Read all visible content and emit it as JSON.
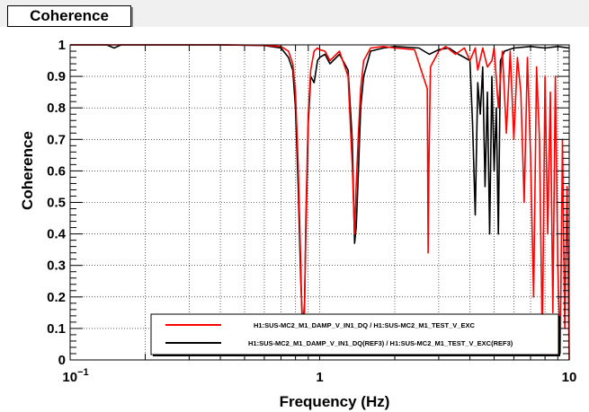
{
  "window": {
    "title": "Coherence"
  },
  "chart_data": {
    "type": "line",
    "title": "Coherence",
    "xlabel": "Frequency (Hz)",
    "ylabel": "Coherence",
    "xscale": "log",
    "xlim": [
      0.1,
      10
    ],
    "ylim": [
      0,
      1
    ],
    "grid": true,
    "legend_position": "bottom-right",
    "x_ticks": [
      {
        "value": 0.1,
        "base": "10",
        "exp": "−1"
      },
      {
        "value": 1,
        "base": "1",
        "exp": ""
      },
      {
        "value": 10,
        "base": "10",
        "exp": ""
      }
    ],
    "y_ticks": [
      "0",
      "0.1",
      "0.2",
      "0.3",
      "0.4",
      "0.5",
      "0.6",
      "0.7",
      "0.8",
      "0.9",
      "1"
    ],
    "series": [
      {
        "name": "H1:SUS-MC2_M1_DAMP_V_IN1_DQ / H1:SUS-MC2_M1_TEST_V_EXC",
        "color": "#ff0000",
        "x": [
          0.1,
          0.2,
          0.4,
          0.6,
          0.7,
          0.75,
          0.78,
          0.8,
          0.82,
          0.84,
          0.85,
          0.86,
          0.87,
          0.88,
          0.9,
          0.92,
          0.95,
          0.98,
          1.0,
          1.05,
          1.1,
          1.2,
          1.3,
          1.35,
          1.38,
          1.4,
          1.43,
          1.46,
          1.5,
          1.6,
          1.8,
          2.0,
          2.4,
          2.7,
          2.72,
          2.74,
          2.78,
          3.0,
          3.2,
          3.5,
          3.8,
          4.0,
          4.2,
          4.3,
          4.5,
          4.7,
          4.9,
          5.0,
          5.2,
          5.4,
          5.6,
          5.8,
          6.0,
          6.2,
          6.4,
          6.6,
          6.8,
          7.0,
          7.2,
          7.4,
          7.6,
          7.8,
          8.0,
          8.2,
          8.4,
          8.6,
          8.8,
          9.0,
          9.2,
          9.4,
          9.6,
          9.8,
          10.0
        ],
        "y": [
          1.0,
          1.0,
          1.0,
          0.999,
          0.995,
          0.98,
          0.94,
          0.85,
          0.62,
          0.3,
          0.12,
          0.05,
          0.16,
          0.45,
          0.78,
          0.92,
          0.98,
          0.99,
          0.985,
          0.98,
          0.95,
          0.98,
          0.9,
          0.62,
          0.4,
          0.55,
          0.72,
          0.86,
          0.95,
          0.99,
          0.995,
          0.99,
          0.985,
          0.86,
          0.34,
          0.62,
          0.93,
          0.98,
          0.995,
          0.97,
          0.99,
          0.95,
          0.99,
          0.92,
          0.99,
          0.93,
          0.95,
          0.99,
          0.8,
          0.98,
          0.72,
          0.98,
          0.7,
          0.96,
          0.85,
          0.5,
          0.96,
          0.65,
          0.2,
          0.93,
          0.7,
          0.05,
          0.9,
          0.4,
          0.85,
          0.15,
          0.9,
          0.3,
          0.02,
          0.7,
          0.1,
          0.55,
          0.0
        ]
      },
      {
        "name": "H1:SUS-MC2_M1_DAMP_V_IN1_DQ(REF3) / H1:SUS-MC2_M1_TEST_V_EXC(REF3)",
        "color": "#000000",
        "x": [
          0.1,
          0.14,
          0.15,
          0.16,
          0.2,
          0.4,
          0.6,
          0.7,
          0.75,
          0.78,
          0.8,
          0.82,
          0.84,
          0.85,
          0.86,
          0.87,
          0.88,
          0.9,
          0.92,
          0.95,
          0.98,
          1.0,
          1.05,
          1.1,
          1.2,
          1.3,
          1.35,
          1.38,
          1.4,
          1.43,
          1.46,
          1.5,
          1.6,
          1.8,
          2.0,
          2.5,
          2.75,
          3.0,
          3.3,
          3.6,
          3.8,
          4.0,
          4.1,
          4.2,
          4.3,
          4.4,
          4.5,
          4.6,
          4.7,
          4.8,
          4.9,
          5.0,
          5.1,
          5.2,
          5.3,
          5.5,
          6.0,
          7.0,
          8.0,
          9.0,
          10.0
        ],
        "y": [
          1.0,
          1.0,
          0.99,
          1.0,
          1.0,
          1.0,
          0.998,
          0.99,
          0.96,
          0.92,
          0.8,
          0.55,
          0.25,
          0.15,
          0.12,
          0.18,
          0.4,
          0.75,
          0.9,
          0.88,
          0.95,
          0.96,
          0.97,
          0.94,
          0.97,
          0.92,
          0.7,
          0.37,
          0.42,
          0.6,
          0.8,
          0.9,
          0.98,
          0.99,
          0.995,
          0.99,
          0.97,
          0.985,
          0.99,
          0.97,
          0.96,
          0.95,
          0.75,
          0.46,
          0.88,
          0.78,
          0.93,
          0.55,
          0.85,
          0.4,
          0.9,
          0.6,
          0.8,
          0.4,
          0.95,
          0.98,
          0.99,
          0.995,
          0.99,
          0.995,
          0.99
        ]
      }
    ]
  }
}
